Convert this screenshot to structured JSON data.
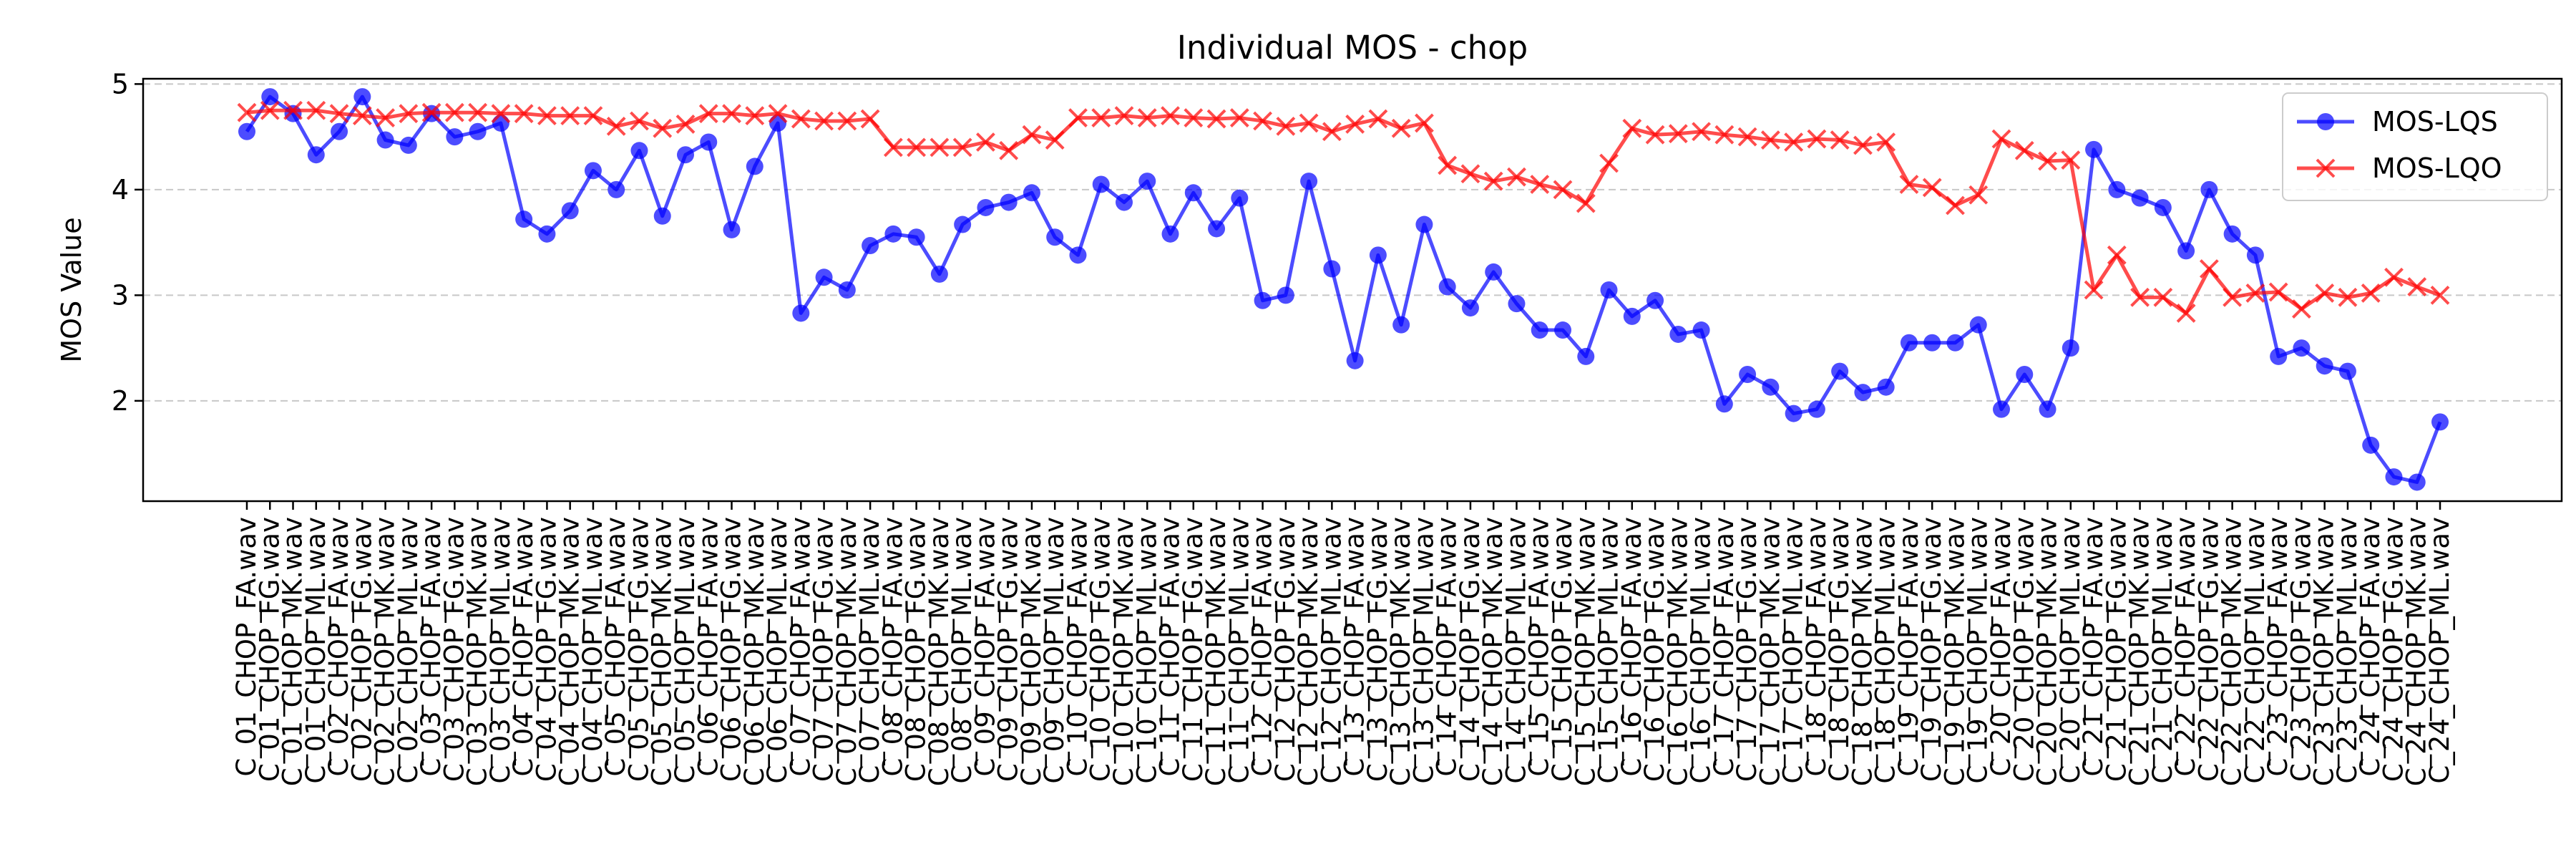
{
  "chart_data": {
    "type": "line",
    "title": "Individual MOS - chop",
    "xlabel": "",
    "ylabel": "MOS Value",
    "ylim": [
      1.05,
      5.05
    ],
    "yticks": [
      2,
      3,
      4,
      5
    ],
    "grid": "y-dashed",
    "legend_position": "top-right",
    "colors": {
      "MOS-LQS": "#0000ff",
      "MOS-LQO": "#ff0000"
    },
    "markers": {
      "MOS-LQS": "circle",
      "MOS-LQO": "x"
    },
    "categories": [
      "C_01_CHOP_FA.wav",
      "C_01_CHOP_FG.wav",
      "C_01_CHOP_MK.wav",
      "C_01_CHOP_ML.wav",
      "C_02_CHOP_FA.wav",
      "C_02_CHOP_FG.wav",
      "C_02_CHOP_MK.wav",
      "C_02_CHOP_ML.wav",
      "C_03_CHOP_FA.wav",
      "C_03_CHOP_FG.wav",
      "C_03_CHOP_MK.wav",
      "C_03_CHOP_ML.wav",
      "C_04_CHOP_FA.wav",
      "C_04_CHOP_FG.wav",
      "C_04_CHOP_MK.wav",
      "C_04_CHOP_ML.wav",
      "C_05_CHOP_FA.wav",
      "C_05_CHOP_FG.wav",
      "C_05_CHOP_MK.wav",
      "C_05_CHOP_ML.wav",
      "C_06_CHOP_FA.wav",
      "C_06_CHOP_FG.wav",
      "C_06_CHOP_MK.wav",
      "C_06_CHOP_ML.wav",
      "C_07_CHOP_FA.wav",
      "C_07_CHOP_FG.wav",
      "C_07_CHOP_MK.wav",
      "C_07_CHOP_ML.wav",
      "C_08_CHOP_FA.wav",
      "C_08_CHOP_FG.wav",
      "C_08_CHOP_MK.wav",
      "C_08_CHOP_ML.wav",
      "C_09_CHOP_FA.wav",
      "C_09_CHOP_FG.wav",
      "C_09_CHOP_MK.wav",
      "C_09_CHOP_ML.wav",
      "C_10_CHOP_FA.wav",
      "C_10_CHOP_FG.wav",
      "C_10_CHOP_MK.wav",
      "C_10_CHOP_ML.wav",
      "C_11_CHOP_FA.wav",
      "C_11_CHOP_FG.wav",
      "C_11_CHOP_MK.wav",
      "C_11_CHOP_ML.wav",
      "C_12_CHOP_FA.wav",
      "C_12_CHOP_FG.wav",
      "C_12_CHOP_MK.wav",
      "C_12_CHOP_ML.wav",
      "C_13_CHOP_FA.wav",
      "C_13_CHOP_FG.wav",
      "C_13_CHOP_MK.wav",
      "C_13_CHOP_ML.wav",
      "C_14_CHOP_FA.wav",
      "C_14_CHOP_FG.wav",
      "C_14_CHOP_MK.wav",
      "C_14_CHOP_ML.wav",
      "C_15_CHOP_FA.wav",
      "C_15_CHOP_FG.wav",
      "C_15_CHOP_MK.wav",
      "C_15_CHOP_ML.wav",
      "C_16_CHOP_FA.wav",
      "C_16_CHOP_FG.wav",
      "C_16_CHOP_MK.wav",
      "C_16_CHOP_ML.wav",
      "C_17_CHOP_FA.wav",
      "C_17_CHOP_FG.wav",
      "C_17_CHOP_MK.wav",
      "C_17_CHOP_ML.wav",
      "C_18_CHOP_FA.wav",
      "C_18_CHOP_FG.wav",
      "C_18_CHOP_MK.wav",
      "C_18_CHOP_ML.wav",
      "C_19_CHOP_FA.wav",
      "C_19_CHOP_FG.wav",
      "C_19_CHOP_MK.wav",
      "C_19_CHOP_ML.wav",
      "C_20_CHOP_FA.wav",
      "C_20_CHOP_FG.wav",
      "C_20_CHOP_MK.wav",
      "C_20_CHOP_ML.wav",
      "C_21_CHOP_FA.wav",
      "C_21_CHOP_FG.wav",
      "C_21_CHOP_MK.wav",
      "C_21_CHOP_ML.wav",
      "C_22_CHOP_FA.wav",
      "C_22_CHOP_FG.wav",
      "C_22_CHOP_MK.wav",
      "C_22_CHOP_ML.wav",
      "C_23_CHOP_FA.wav",
      "C_23_CHOP_FG.wav",
      "C_23_CHOP_MK.wav",
      "C_23_CHOP_ML.wav",
      "C_24_CHOP_FA.wav",
      "C_24_CHOP_FG.wav",
      "C_24_CHOP_MK.wav",
      "C_24_CHOP_ML.wav"
    ],
    "series": [
      {
        "name": "MOS-LQS",
        "values": [
          4.55,
          4.88,
          4.72,
          4.33,
          4.55,
          4.88,
          4.47,
          4.42,
          4.72,
          4.5,
          4.55,
          4.63,
          3.72,
          3.58,
          3.8,
          4.18,
          4.0,
          4.37,
          3.75,
          4.33,
          4.45,
          3.62,
          4.22,
          4.63,
          2.83,
          3.17,
          3.05,
          3.47,
          3.58,
          3.55,
          3.2,
          3.67,
          3.83,
          3.88,
          3.97,
          3.55,
          3.38,
          4.05,
          3.88,
          4.08,
          3.58,
          3.97,
          3.63,
          3.92,
          2.95,
          3.0,
          4.08,
          3.25,
          2.38,
          3.38,
          2.72,
          3.67,
          3.08,
          2.88,
          3.22,
          2.92,
          2.67,
          2.67,
          2.42,
          3.05,
          2.8,
          2.95,
          2.63,
          2.67,
          1.97,
          2.25,
          2.13,
          1.88,
          1.92,
          2.28,
          2.08,
          2.13,
          2.55,
          2.55,
          2.55,
          2.72,
          1.92,
          2.25,
          1.92,
          2.5,
          4.38,
          4.0,
          3.92,
          3.83,
          3.42,
          4.0,
          3.58,
          3.38,
          2.42,
          2.5,
          2.33,
          2.28,
          1.58,
          1.28,
          1.23,
          1.8
        ]
      },
      {
        "name": "MOS-LQO",
        "values": [
          4.73,
          4.75,
          4.75,
          4.75,
          4.72,
          4.7,
          4.68,
          4.72,
          4.73,
          4.73,
          4.73,
          4.72,
          4.72,
          4.7,
          4.7,
          4.7,
          4.6,
          4.65,
          4.58,
          4.62,
          4.72,
          4.72,
          4.7,
          4.72,
          4.67,
          4.65,
          4.65,
          4.67,
          4.4,
          4.4,
          4.4,
          4.4,
          4.45,
          4.37,
          4.52,
          4.47,
          4.68,
          4.68,
          4.7,
          4.68,
          4.7,
          4.68,
          4.67,
          4.68,
          4.65,
          4.6,
          4.63,
          4.55,
          4.62,
          4.67,
          4.58,
          4.63,
          4.23,
          4.15,
          4.08,
          4.12,
          4.05,
          4.0,
          3.87,
          4.25,
          4.58,
          4.52,
          4.53,
          4.55,
          4.52,
          4.5,
          4.47,
          4.45,
          4.48,
          4.47,
          4.42,
          4.45,
          4.05,
          4.02,
          3.85,
          3.95,
          4.48,
          4.37,
          4.27,
          4.28,
          3.05,
          3.38,
          2.98,
          2.98,
          2.83,
          3.25,
          2.98,
          3.02,
          3.03,
          2.87,
          3.02,
          2.98,
          3.02,
          3.17,
          3.08,
          3.0
        ]
      }
    ]
  }
}
